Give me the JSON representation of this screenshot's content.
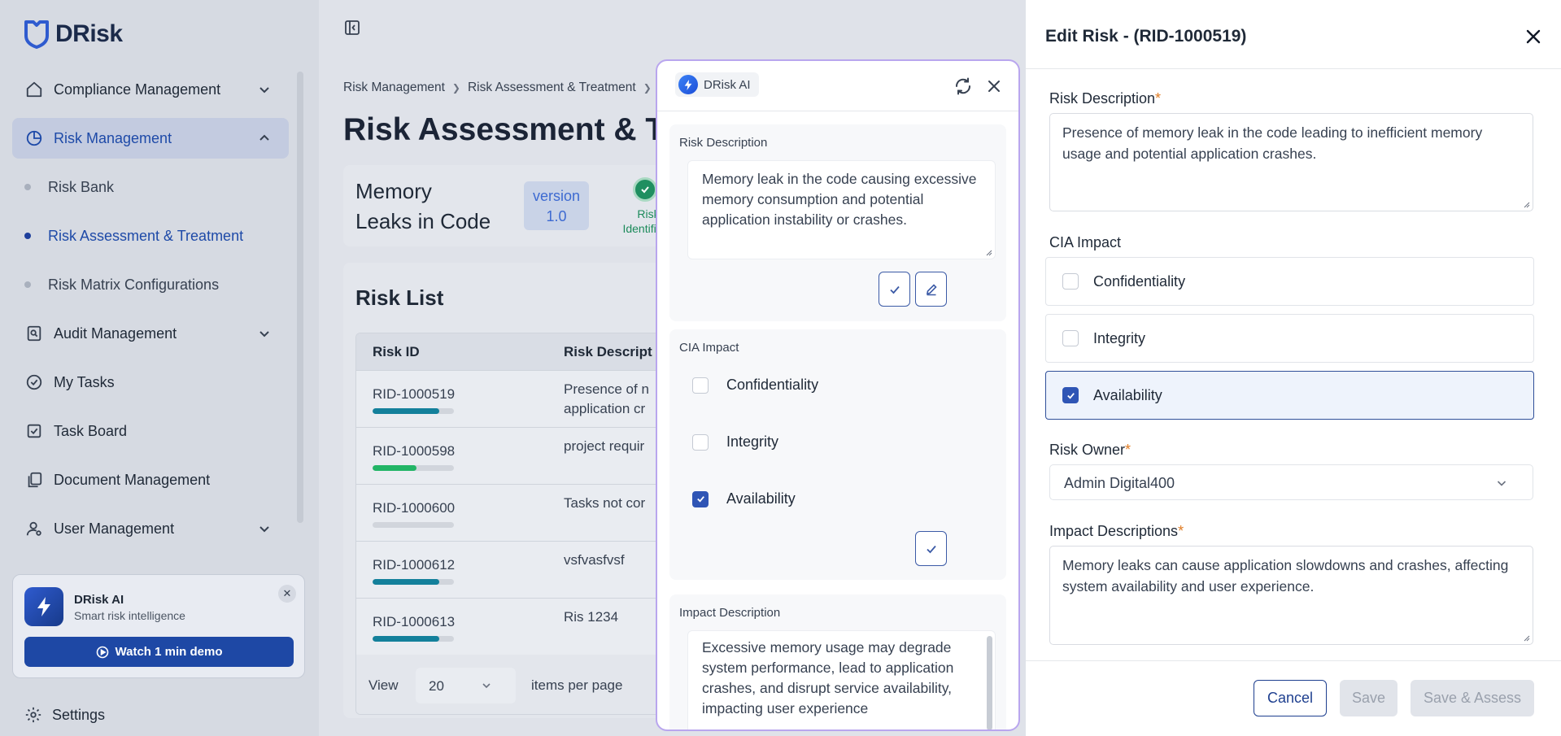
{
  "app": {
    "logo_text": "DRisk"
  },
  "sidebar": {
    "items": [
      {
        "label": "Compliance Management",
        "icon": "home-icon",
        "has_chevron": true
      },
      {
        "label": "Risk Management",
        "icon": "pie-chart-icon",
        "active": true,
        "expanded": true
      },
      {
        "label": "Risk Bank"
      },
      {
        "label": "Risk Assessment & Treatment",
        "active": true
      },
      {
        "label": "Risk Matrix Configurations"
      },
      {
        "label": "Audit Management",
        "icon": "audit-icon",
        "has_chevron": true
      },
      {
        "label": "My Tasks",
        "icon": "check-circle-icon"
      },
      {
        "label": "Task Board",
        "icon": "task-board-icon"
      },
      {
        "label": "Document Management",
        "icon": "documents-icon"
      },
      {
        "label": "User Management",
        "icon": "user-icon",
        "has_chevron": true
      }
    ],
    "ai_card": {
      "title": "DRisk AI",
      "subtitle": "Smart risk intelligence",
      "button_label": "Watch 1 min demo"
    },
    "settings_label": "Settings"
  },
  "main": {
    "breadcrumb": [
      "Risk Management",
      "Risk Assessment & Treatment"
    ],
    "page_title": "Risk Assessment & Tr",
    "risk_header": {
      "name": "Memory Leaks in Code",
      "version_label": "version",
      "version_value": "1.0",
      "step_label_line1": "Risk",
      "step_label_line2": "Identificati"
    },
    "risk_list": {
      "title": "Risk List",
      "columns": [
        "Risk ID",
        "Risk Descript"
      ],
      "rows": [
        {
          "id": "RID-1000519",
          "progress": 0.82,
          "bar_color": "#13809b",
          "desc_line1": "Presence of n",
          "desc_line2": "application cr"
        },
        {
          "id": "RID-1000598",
          "progress": 0.54,
          "bar_color": "#22b566",
          "desc_line1": "project requir",
          "desc_line2": ""
        },
        {
          "id": "RID-1000600",
          "progress": 0.0,
          "bar_color": "#13809b",
          "desc_line1": "Tasks not cor",
          "desc_line2": ""
        },
        {
          "id": "RID-1000612",
          "progress": 0.82,
          "bar_color": "#13809b",
          "desc_line1": "vsfvasfvsf",
          "desc_line2": ""
        },
        {
          "id": "RID-1000613",
          "progress": 0.82,
          "bar_color": "#13809b",
          "desc_line1": "Ris 1234",
          "desc_line2": ""
        }
      ],
      "pager": {
        "view_label": "View",
        "page_size": "20",
        "items_label": "items per page"
      }
    }
  },
  "ai_panel": {
    "title": "DRisk AI",
    "risk_description": {
      "label": "Risk Description",
      "text": "Memory leak in the code causing excessive memory consumption and potential application instability or crashes."
    },
    "cia_impact": {
      "label": "CIA Impact",
      "options": [
        {
          "label": "Confidentiality",
          "checked": false
        },
        {
          "label": "Integrity",
          "checked": false
        },
        {
          "label": "Availability",
          "checked": true
        }
      ]
    },
    "impact_description": {
      "label": "Impact Description",
      "text": "Excessive memory usage may degrade system performance, lead to application crashes, and disrupt service availability, impacting user experience"
    }
  },
  "edit_drawer": {
    "title": "Edit Risk - (RID-1000519)",
    "risk_description": {
      "label": "Risk Description",
      "required_mark": "*",
      "value": "Presence of memory leak in the code leading to inefficient memory usage and potential application crashes."
    },
    "cia_impact": {
      "label": "CIA Impact",
      "options": [
        {
          "label": "Confidentiality",
          "checked": false
        },
        {
          "label": "Integrity",
          "checked": false
        },
        {
          "label": "Availability",
          "checked": true
        }
      ]
    },
    "risk_owner": {
      "label": "Risk Owner",
      "required_mark": "*",
      "value": "Admin Digital400"
    },
    "impact_descriptions": {
      "label": "Impact Descriptions",
      "required_mark": "*",
      "value": "Memory leaks can cause application slowdowns and crashes, affecting system availability and user experience."
    },
    "buttons": {
      "cancel": "Cancel",
      "save": "Save",
      "save_assess": "Save & Assess"
    }
  },
  "colors": {
    "accent": "#1e48a5",
    "ai_border": "#b9a6ee",
    "success": "#1f8f60"
  }
}
